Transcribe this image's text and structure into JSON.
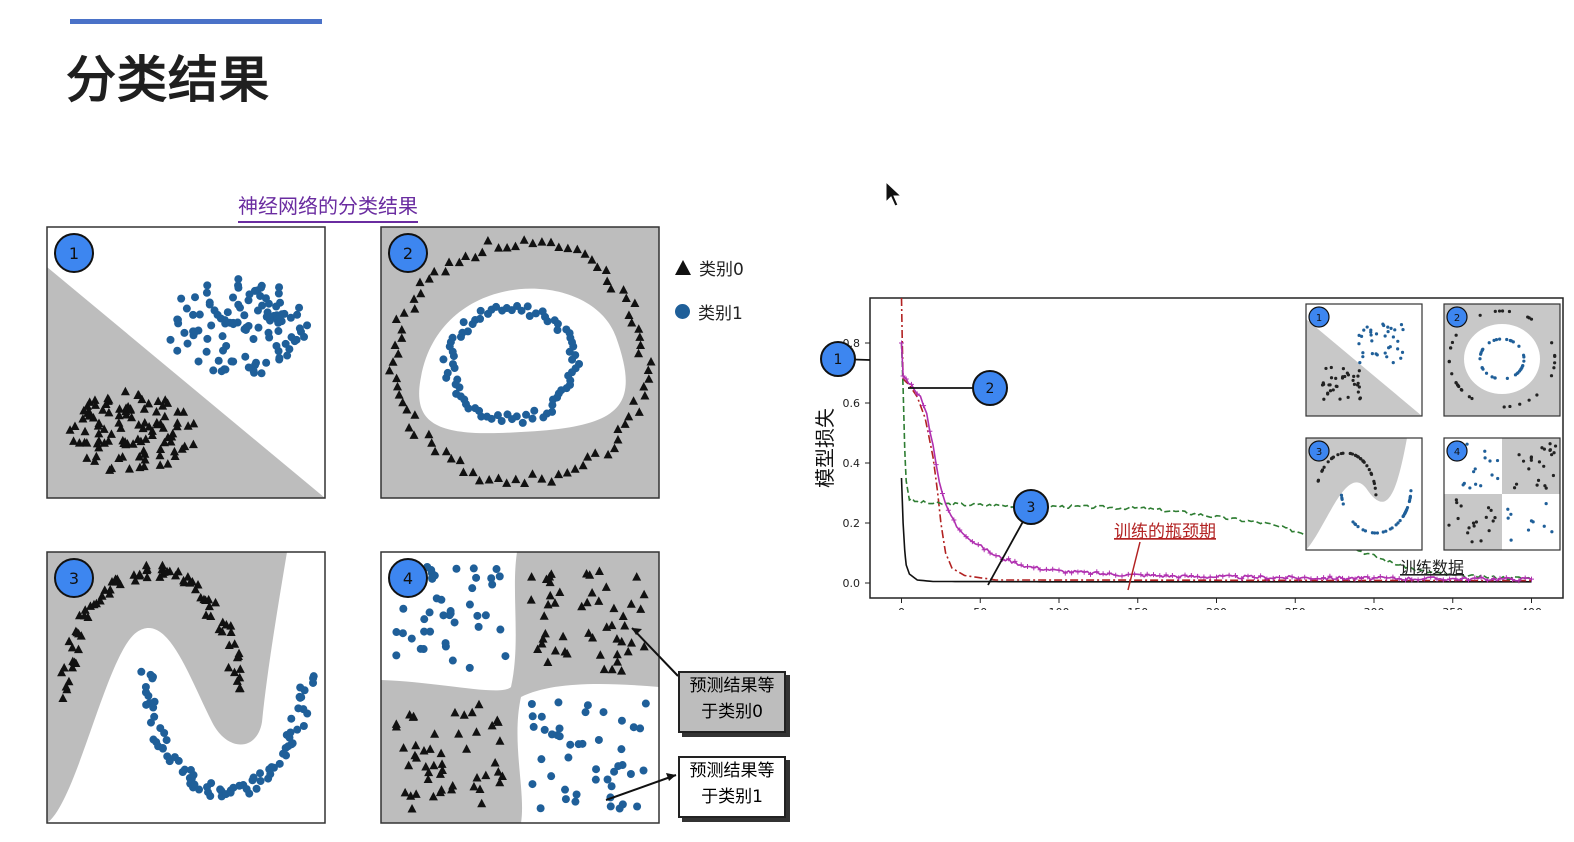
{
  "slide": {
    "title": "分类结果",
    "panel_title": "神经网络的分类结果",
    "legend": [
      {
        "marker": "triangle",
        "label": "类别0",
        "color": "#111111"
      },
      {
        "marker": "circle",
        "label": "类别1",
        "color": "#1f5f99"
      }
    ],
    "callouts": {
      "class0": "预测结果等\n于类别0",
      "class1": "预测结果等\n于类别1"
    },
    "subplot_numbers": [
      "1",
      "2",
      "3",
      "4"
    ]
  },
  "chart_data": {
    "type": "line",
    "ylabel": "模型损失",
    "xlabel": "",
    "xlim": [
      0,
      400
    ],
    "ylim": [
      0,
      0.9
    ],
    "x_ticks": [
      "0",
      "50",
      "100",
      "150",
      "200",
      "250",
      "300",
      "350",
      "400"
    ],
    "y_ticks": [
      "0.0",
      "0.2",
      "0.4",
      "0.6",
      "0.8"
    ],
    "annotation": "训练的瓶颈期",
    "inset_title": "训练数据",
    "series": [
      {
        "id": "1",
        "color": "#111111",
        "style": "solid",
        "points": [
          [
            0,
            0.35
          ],
          [
            1,
            0.2
          ],
          [
            2,
            0.11
          ],
          [
            3,
            0.06
          ],
          [
            5,
            0.03
          ],
          [
            10,
            0.01
          ],
          [
            20,
            0.005
          ],
          [
            100,
            0.004
          ],
          [
            400,
            0.004
          ]
        ]
      },
      {
        "id": "2",
        "color": "#b22222",
        "style": "dashdot",
        "points": [
          [
            0,
            0.95
          ],
          [
            0.5,
            0.8
          ],
          [
            1,
            0.68
          ],
          [
            5,
            0.66
          ],
          [
            10,
            0.62
          ],
          [
            15,
            0.55
          ],
          [
            20,
            0.42
          ],
          [
            23,
            0.3
          ],
          [
            25,
            0.2
          ],
          [
            28,
            0.1
          ],
          [
            32,
            0.05
          ],
          [
            40,
            0.025
          ],
          [
            60,
            0.01
          ],
          [
            400,
            0.008
          ]
        ]
      },
      {
        "id": "3",
        "color": "#2e7d32",
        "style": "dashed",
        "points": [
          [
            0,
            0.8
          ],
          [
            1,
            0.65
          ],
          [
            2,
            0.45
          ],
          [
            3,
            0.34
          ],
          [
            5,
            0.28
          ],
          [
            10,
            0.27
          ],
          [
            20,
            0.265
          ],
          [
            50,
            0.26
          ],
          [
            100,
            0.255
          ],
          [
            150,
            0.25
          ],
          [
            180,
            0.235
          ],
          [
            200,
            0.22
          ],
          [
            230,
            0.2
          ],
          [
            260,
            0.16
          ],
          [
            290,
            0.11
          ],
          [
            310,
            0.07
          ],
          [
            330,
            0.04
          ],
          [
            350,
            0.025
          ],
          [
            380,
            0.018
          ],
          [
            400,
            0.016
          ]
        ]
      },
      {
        "id": "4",
        "color": "#b030b0",
        "style": "plus",
        "points": [
          [
            0,
            0.8
          ],
          [
            1,
            0.69
          ],
          [
            3,
            0.68
          ],
          [
            8,
            0.65
          ],
          [
            12,
            0.62
          ],
          [
            16,
            0.56
          ],
          [
            20,
            0.46
          ],
          [
            24,
            0.34
          ],
          [
            28,
            0.26
          ],
          [
            35,
            0.19
          ],
          [
            45,
            0.14
          ],
          [
            60,
            0.09
          ],
          [
            80,
            0.055
          ],
          [
            100,
            0.04
          ],
          [
            130,
            0.03
          ],
          [
            180,
            0.022
          ],
          [
            250,
            0.018
          ],
          [
            320,
            0.015
          ],
          [
            400,
            0.013
          ]
        ]
      }
    ]
  }
}
